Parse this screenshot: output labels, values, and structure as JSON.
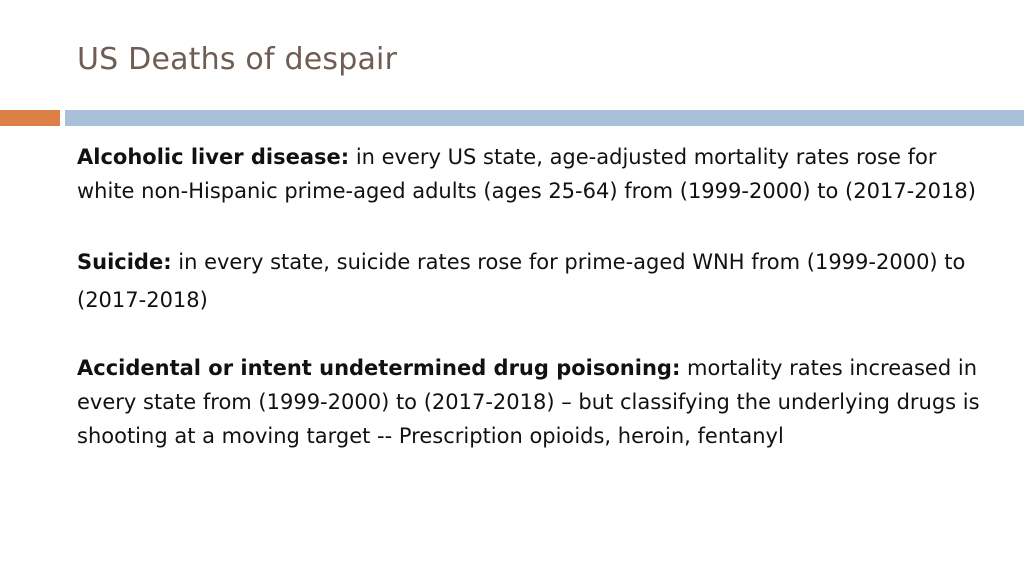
{
  "slide": {
    "title": "US Deaths of despair"
  },
  "body": {
    "items": [
      {
        "label": "Alcoholic liver disease:",
        "text": " in every US state, age-adjusted mortality rates rose for white non-Hispanic prime-aged adults (ages 25-64) from (1999-2000) to (2017-2018)"
      },
      {
        "label": "Suicide:",
        "text": " in every state, suicide rates rose for prime-aged WNH from (1999-2000) to (2017-2018)"
      },
      {
        "label": "Accidental or intent undetermined drug poisoning:",
        "text": " mortality rates increased in every state from (1999-2000) to (2017-2018) – but classifying the underlying drugs is shooting at a moving target  -- Prescription opioids, heroin, fentanyl"
      }
    ]
  },
  "colors": {
    "title": "#6f5d53",
    "accent_orange": "#dd8047",
    "accent_blue": "#a8c0d8"
  }
}
